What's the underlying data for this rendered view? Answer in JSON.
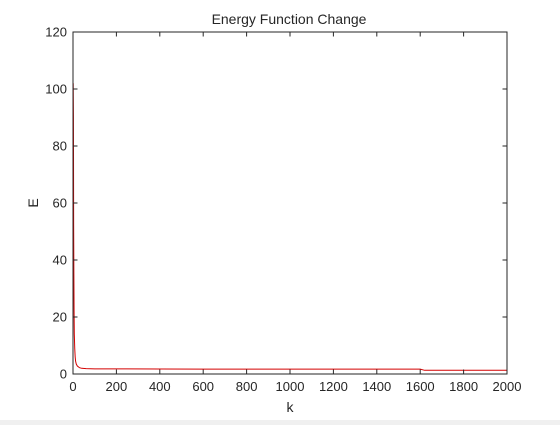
{
  "chart_data": {
    "type": "line",
    "title": "Energy Function Change",
    "xlabel": "k",
    "ylabel": "E",
    "xlim": [
      0,
      2000
    ],
    "ylim": [
      0,
      120
    ],
    "xticks": [
      0,
      200,
      400,
      600,
      800,
      1000,
      1200,
      1400,
      1600,
      1800,
      2000
    ],
    "yticks": [
      0,
      20,
      40,
      60,
      80,
      100,
      120
    ],
    "grid": false,
    "box": true,
    "series": [
      {
        "color": "#d40000",
        "x": [
          1,
          2,
          3,
          4,
          5,
          6,
          8,
          10,
          12,
          15,
          20,
          30,
          40,
          60,
          100,
          200,
          400,
          600,
          800,
          1000,
          1200,
          1400,
          1600,
          1620,
          1700,
          1800,
          2000
        ],
        "y": [
          102,
          90,
          52,
          35,
          22,
          14,
          9,
          6,
          4.5,
          3.5,
          2.8,
          2.2,
          2.0,
          1.9,
          1.8,
          1.8,
          1.75,
          1.7,
          1.7,
          1.7,
          1.7,
          1.7,
          1.7,
          1.3,
          1.3,
          1.3,
          1.3
        ]
      }
    ]
  }
}
